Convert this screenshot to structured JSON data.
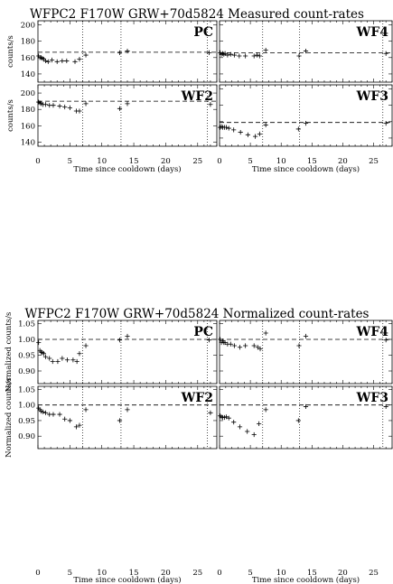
{
  "chart_data": [
    {
      "type": "scatter",
      "title": "WFPC2 F170W GRW+70d5824 Measured count-rates",
      "xlabel": "Time since cooldown (days)",
      "ylabel": "counts/s",
      "xlim": [
        0,
        28
      ],
      "x_ticks": [
        0,
        5,
        10,
        15,
        20,
        25
      ],
      "cooldown_markers": [
        7,
        13,
        26.5
      ],
      "panels": [
        {
          "label": "PC",
          "ylim": [
            130,
            205
          ],
          "y_ticks": [
            140,
            160,
            180,
            200
          ],
          "reference": 166.5,
          "points": [
            [
              0.1,
              162
            ],
            [
              0.3,
              160
            ],
            [
              0.5,
              160
            ],
            [
              0.7,
              159
            ],
            [
              0.9,
              158
            ],
            [
              1.2,
              156
            ],
            [
              1.6,
              155
            ],
            [
              2.2,
              157
            ],
            [
              3.0,
              155
            ],
            [
              3.8,
              156
            ],
            [
              4.5,
              156
            ],
            [
              5.8,
              155
            ],
            [
              6.5,
              158
            ],
            [
              7.5,
              163
            ],
            [
              12.8,
              166
            ],
            [
              14.0,
              168
            ],
            [
              26.8,
              166
            ]
          ]
        },
        {
          "label": "WF4",
          "ylim": [
            130,
            205
          ],
          "y_ticks": [
            140,
            160,
            180,
            200
          ],
          "reference": 166,
          "points": [
            [
              0.1,
              166
            ],
            [
              0.3,
              164
            ],
            [
              0.5,
              165
            ],
            [
              0.7,
              164
            ],
            [
              0.9,
              165
            ],
            [
              1.3,
              163
            ],
            [
              1.8,
              164
            ],
            [
              2.4,
              163
            ],
            [
              3.2,
              162
            ],
            [
              4.2,
              162
            ],
            [
              5.6,
              162
            ],
            [
              6.1,
              163
            ],
            [
              6.5,
              162
            ],
            [
              7.5,
              169
            ],
            [
              12.9,
              162
            ],
            [
              14.0,
              168
            ],
            [
              27.0,
              165
            ]
          ]
        },
        {
          "label": "WF2",
          "ylim": [
            135,
            210
          ],
          "y_ticks": [
            140,
            160,
            180,
            200
          ],
          "reference": 190,
          "points": [
            [
              0.1,
              189
            ],
            [
              0.3,
              188
            ],
            [
              0.5,
              187
            ],
            [
              0.8,
              186
            ],
            [
              1.2,
              186
            ],
            [
              1.8,
              185
            ],
            [
              2.4,
              185
            ],
            [
              3.4,
              184
            ],
            [
              4.2,
              183
            ],
            [
              5.0,
              182
            ],
            [
              6.0,
              178
            ],
            [
              6.5,
              178
            ],
            [
              7.5,
              187
            ],
            [
              12.8,
              181
            ],
            [
              14.0,
              187
            ],
            [
              27.0,
              186
            ]
          ]
        },
        {
          "label": "WF3",
          "ylim": [
            130,
            205
          ],
          "y_ticks": [
            140,
            160,
            180,
            200
          ],
          "reference": 159,
          "points": [
            [
              0.1,
              153
            ],
            [
              0.3,
              154
            ],
            [
              0.5,
              153
            ],
            [
              0.8,
              153
            ],
            [
              1.1,
              153
            ],
            [
              1.5,
              152
            ],
            [
              2.3,
              150
            ],
            [
              3.4,
              147
            ],
            [
              4.6,
              144
            ],
            [
              5.8,
              142
            ],
            [
              6.5,
              145
            ],
            [
              7.5,
              156
            ],
            [
              12.8,
              151
            ],
            [
              14.0,
              158
            ],
            [
              27.0,
              158
            ]
          ]
        }
      ]
    },
    {
      "type": "scatter",
      "title": "WFPC2 F170W GRW+70d5824 Normalized count-rates",
      "xlabel": "Time since cooldown (days)",
      "ylabel": "Normalized counts/s",
      "xlim": [
        0,
        28
      ],
      "x_ticks": [
        0,
        5,
        10,
        15,
        20,
        25
      ],
      "cooldown_markers": [
        7,
        13,
        26.5
      ],
      "panels": [
        {
          "label": "PC",
          "ylim": [
            0.86,
            1.06
          ],
          "y_ticks": [
            0.9,
            0.95,
            1.0,
            1.05
          ],
          "reference": 1.0,
          "points": [
            [
              0.1,
              0.99
            ],
            [
              0.3,
              0.965
            ],
            [
              0.5,
              0.96
            ],
            [
              0.7,
              0.958
            ],
            [
              0.9,
              0.955
            ],
            [
              1.2,
              0.945
            ],
            [
              1.8,
              0.94
            ],
            [
              2.3,
              0.93
            ],
            [
              3.1,
              0.93
            ],
            [
              3.8,
              0.94
            ],
            [
              4.6,
              0.935
            ],
            [
              5.5,
              0.935
            ],
            [
              6.1,
              0.93
            ],
            [
              6.5,
              0.955
            ],
            [
              7.5,
              0.98
            ],
            [
              12.8,
              0.998
            ],
            [
              14.0,
              1.01
            ],
            [
              26.8,
              0.998
            ]
          ]
        },
        {
          "label": "WF4",
          "ylim": [
            0.86,
            1.06
          ],
          "y_ticks": [
            0.9,
            0.95,
            1.0,
            1.05
          ],
          "reference": 1.0,
          "points": [
            [
              0.1,
              1.0
            ],
            [
              0.3,
              0.99
            ],
            [
              0.5,
              0.995
            ],
            [
              0.7,
              0.99
            ],
            [
              0.9,
              0.99
            ],
            [
              1.3,
              0.985
            ],
            [
              1.8,
              0.985
            ],
            [
              2.4,
              0.98
            ],
            [
              3.3,
              0.975
            ],
            [
              4.2,
              0.98
            ],
            [
              5.6,
              0.98
            ],
            [
              6.2,
              0.975
            ],
            [
              6.6,
              0.97
            ],
            [
              7.5,
              1.02
            ],
            [
              12.9,
              0.98
            ],
            [
              14.0,
              1.01
            ],
            [
              27.0,
              0.998
            ]
          ]
        },
        {
          "label": "WF2",
          "ylim": [
            0.86,
            1.06
          ],
          "y_ticks": [
            0.9,
            0.95,
            1.0,
            1.05
          ],
          "reference": 1.0,
          "points": [
            [
              0.1,
              0.99
            ],
            [
              0.3,
              0.985
            ],
            [
              0.5,
              0.98
            ],
            [
              0.8,
              0.978
            ],
            [
              1.2,
              0.975
            ],
            [
              1.8,
              0.97
            ],
            [
              2.4,
              0.97
            ],
            [
              3.4,
              0.97
            ],
            [
              4.2,
              0.955
            ],
            [
              5.0,
              0.95
            ],
            [
              6.0,
              0.93
            ],
            [
              6.5,
              0.935
            ],
            [
              7.5,
              0.985
            ],
            [
              12.8,
              0.95
            ],
            [
              14.0,
              0.985
            ],
            [
              27.0,
              0.975
            ]
          ]
        },
        {
          "label": "WF3",
          "ylim": [
            0.86,
            1.06
          ],
          "y_ticks": [
            0.9,
            0.95,
            1.0,
            1.05
          ],
          "reference": 1.0,
          "points": [
            [
              0.1,
              0.965
            ],
            [
              0.3,
              0.962
            ],
            [
              0.5,
              0.96
            ],
            [
              0.8,
              0.96
            ],
            [
              1.1,
              0.962
            ],
            [
              1.5,
              0.958
            ],
            [
              2.3,
              0.945
            ],
            [
              3.3,
              0.93
            ],
            [
              4.5,
              0.915
            ],
            [
              5.6,
              0.905
            ],
            [
              6.4,
              0.94
            ],
            [
              7.5,
              0.985
            ],
            [
              12.8,
              0.95
            ],
            [
              14.0,
              0.995
            ],
            [
              27.0,
              0.995
            ]
          ]
        }
      ]
    }
  ]
}
